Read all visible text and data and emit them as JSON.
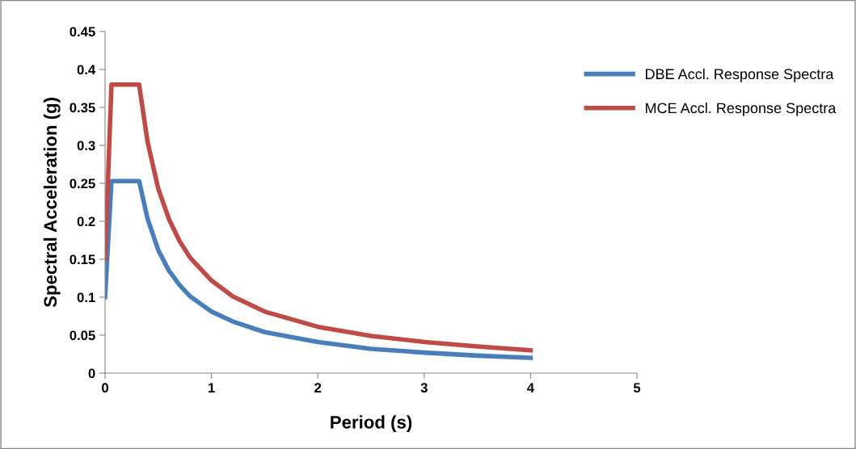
{
  "chart_data": {
    "type": "line",
    "xlabel": "Period (s)",
    "ylabel": "Spectral Acceleration (g)",
    "xlim": [
      0,
      5
    ],
    "xticks": [
      0,
      1,
      2,
      3,
      4,
      5
    ],
    "ylim": [
      0,
      0.45
    ],
    "yticks": [
      0,
      0.05,
      0.1,
      0.15,
      0.2,
      0.25,
      0.3,
      0.35,
      0.4,
      0.45
    ],
    "grid": false,
    "legend": "right",
    "marker": "none",
    "line_style": "solid",
    "x": [
      0,
      0.06,
      0.32,
      0.4,
      0.5,
      0.6,
      0.7,
      0.8,
      1.0,
      1.2,
      1.5,
      2,
      2.5,
      3,
      3.5,
      4
    ],
    "series": [
      {
        "name": "DBE Accl. Response Spectra",
        "color": "#4a7ebb",
        "values": [
          0.1,
          0.253,
          0.253,
          0.203,
          0.162,
          0.135,
          0.116,
          0.101,
          0.081,
          0.068,
          0.054,
          0.041,
          0.032,
          0.027,
          0.023,
          0.02
        ]
      },
      {
        "name": "MCE Accl. Response Spectra",
        "color": "#be4b48",
        "values": [
          0.15,
          0.38,
          0.38,
          0.304,
          0.243,
          0.203,
          0.174,
          0.152,
          0.122,
          0.101,
          0.081,
          0.061,
          0.049,
          0.041,
          0.035,
          0.03
        ]
      }
    ]
  }
}
